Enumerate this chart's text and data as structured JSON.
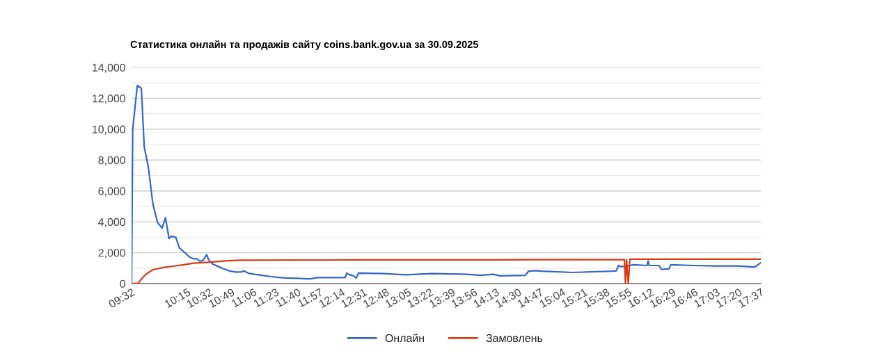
{
  "chart_data": {
    "type": "line",
    "title": "Статистика онлайн та продажів сайту coins.bank.gov.ua за 30.09.2025",
    "xlim": [
      9.533,
      17.617
    ],
    "xticks": [
      {
        "value": 9.533,
        "label": "09:32"
      },
      {
        "value": 10.25,
        "label": "10:15"
      },
      {
        "value": 10.5333,
        "label": "10:32"
      },
      {
        "value": 10.8167,
        "label": "10:49"
      },
      {
        "value": 11.1,
        "label": "11:06"
      },
      {
        "value": 11.3833,
        "label": "11:23"
      },
      {
        "value": 11.6667,
        "label": "11:40"
      },
      {
        "value": 11.95,
        "label": "11:57"
      },
      {
        "value": 12.2333,
        "label": "12:14"
      },
      {
        "value": 12.5167,
        "label": "12:31"
      },
      {
        "value": 12.8,
        "label": "12:48"
      },
      {
        "value": 13.0833,
        "label": "13:05"
      },
      {
        "value": 13.3667,
        "label": "13:22"
      },
      {
        "value": 13.65,
        "label": "13:39"
      },
      {
        "value": 13.9333,
        "label": "13:56"
      },
      {
        "value": 14.2167,
        "label": "14:13"
      },
      {
        "value": 14.5,
        "label": "14:30"
      },
      {
        "value": 14.7833,
        "label": "14:47"
      },
      {
        "value": 15.0667,
        "label": "15:04"
      },
      {
        "value": 15.35,
        "label": "15:21"
      },
      {
        "value": 15.6333,
        "label": "15:38"
      },
      {
        "value": 15.9167,
        "label": "15:55"
      },
      {
        "value": 16.2,
        "label": "16:12"
      },
      {
        "value": 16.4833,
        "label": "16:29"
      },
      {
        "value": 16.7667,
        "label": "16:46"
      },
      {
        "value": 17.05,
        "label": "17:03"
      },
      {
        "value": 17.3333,
        "label": "17:20"
      },
      {
        "value": 17.617,
        "label": "17:37"
      }
    ],
    "ylim": [
      0,
      14000
    ],
    "yticks": [
      {
        "value": 0,
        "label": "0"
      },
      {
        "value": 2000,
        "label": "2,000"
      },
      {
        "value": 4000,
        "label": "4,000"
      },
      {
        "value": 6000,
        "label": "6,000"
      },
      {
        "value": 8000,
        "label": "8,000"
      },
      {
        "value": 10000,
        "label": "10,000"
      },
      {
        "value": 12000,
        "label": "12,000"
      },
      {
        "value": 14000,
        "label": "14,000"
      }
    ],
    "grid": "y",
    "legend": "bottom",
    "marker": "none",
    "line_style": "solid",
    "series": [
      {
        "name": "Онлайн",
        "color": "#3366cc",
        "x": [
          9.533,
          9.548,
          9.607,
          9.659,
          9.696,
          9.748,
          9.807,
          9.866,
          9.925,
          9.969,
          10.014,
          10.043,
          10.102,
          10.147,
          10.213,
          10.277,
          10.331,
          10.371,
          10.412,
          10.452,
          10.498,
          10.52,
          10.574,
          10.641,
          10.709,
          10.79,
          10.871,
          10.938,
          10.979,
          11.033,
          11.114,
          11.222,
          11.33,
          11.492,
          11.654,
          11.816,
          11.925,
          12.278,
          12.297,
          12.334,
          12.39,
          12.418,
          12.447,
          12.771,
          13.053,
          13.391,
          13.843,
          14.012,
          14.181,
          14.266,
          14.59,
          14.632,
          14.717,
          14.801,
          15.197,
          15.704,
          15.76,
          15.789,
          15.817,
          15.887,
          15.986,
          16.155,
          16.169,
          16.183,
          16.31,
          16.339,
          16.437,
          16.46,
          16.747,
          17.029,
          17.312,
          17.537,
          17.617
        ],
        "values": [
          0,
          10000,
          12830,
          12650,
          8830,
          7560,
          5160,
          3970,
          3590,
          4270,
          2920,
          3070,
          2990,
          2320,
          2020,
          1720,
          1600,
          1600,
          1450,
          1500,
          1870,
          1570,
          1270,
          1120,
          970,
          820,
          750,
          750,
          820,
          670,
          600,
          520,
          450,
          370,
          340,
          300,
          390,
          390,
          680,
          570,
          500,
          350,
          680,
          650,
          570,
          650,
          600,
          530,
          600,
          500,
          530,
          800,
          840,
          800,
          720,
          800,
          830,
          1170,
          1100,
          1130,
          1220,
          1170,
          1470,
          1170,
          1170,
          920,
          950,
          1220,
          1170,
          1140,
          1140,
          1070,
          1350
        ]
      },
      {
        "name": "Замовлень",
        "color": "#dc3912",
        "x": [
          9.533,
          9.622,
          9.659,
          9.718,
          9.807,
          9.954,
          10.176,
          10.331,
          10.52,
          10.736,
          10.925,
          12.03,
          14.181,
          14.801,
          15.864,
          15.878,
          15.892,
          15.915,
          15.935,
          15.95,
          17.617
        ],
        "values": [
          0,
          30,
          300,
          600,
          900,
          1050,
          1200,
          1320,
          1380,
          1470,
          1510,
          1530,
          1540,
          1550,
          1550,
          0,
          1550,
          0,
          1580,
          1580,
          1580
        ]
      }
    ]
  }
}
